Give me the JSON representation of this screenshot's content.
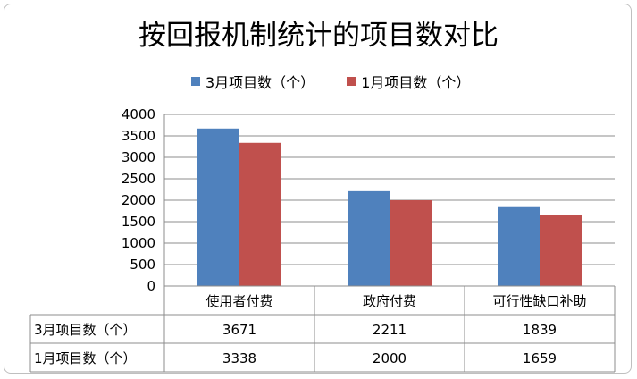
{
  "chart_data": {
    "type": "bar",
    "title": "按回报机制统计的项目数对比",
    "categories": [
      "使用者付费",
      "政府付费",
      "可行性缺口补助"
    ],
    "series": [
      {
        "name": "3月项目数（个）",
        "values": [
          3671,
          2211,
          1839
        ],
        "color": "#4f81bd"
      },
      {
        "name": "1月项目数（个）",
        "values": [
          3338,
          2000,
          1659
        ],
        "color": "#c0504d"
      }
    ],
    "yticks": [
      0,
      500,
      1000,
      1500,
      2000,
      2500,
      3000,
      3500,
      4000
    ],
    "ylim": [
      0,
      4000
    ],
    "grid": true,
    "legend": "top",
    "data_table": true
  }
}
